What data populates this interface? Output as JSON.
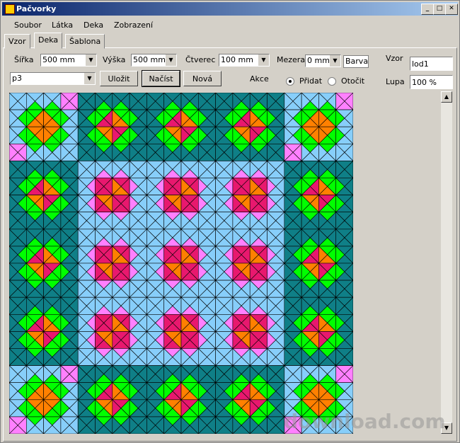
{
  "window": {
    "title": "Pačvorky"
  },
  "menu": [
    "Soubor",
    "Látka",
    "Deka",
    "Zobrazení"
  ],
  "tabs": [
    "Vzor",
    "Deka",
    "Šablona"
  ],
  "form": {
    "width_label": "Šířka",
    "width_value": "500 mm",
    "height_label": "Výška",
    "height_value": "500 mm",
    "square_label": "Čtverec",
    "square_value": "100 mm",
    "gap_label": "Mezera",
    "gap_value": "0 mm",
    "color_button": "Barva",
    "pattern_label": "Vzor",
    "pattern_value": "lod1",
    "preset_value": "p3",
    "save": "Uložit",
    "load": "Načíst",
    "new": "Nová",
    "action_label": "Akce",
    "add": "Přidat",
    "rotate": "Otočit",
    "zoom_label": "Lupa",
    "zoom_value": "100 %"
  },
  "watermark": "download.com"
}
